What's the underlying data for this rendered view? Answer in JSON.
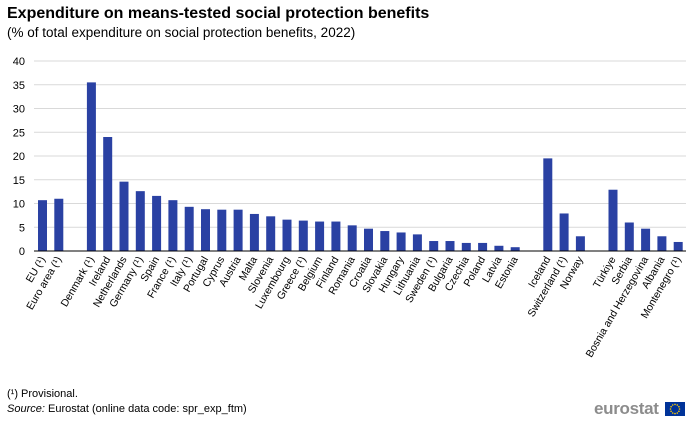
{
  "title": "Expenditure on means-tested social protection benefits",
  "subtitle": "(% of total expenditure on social protection benefits, 2022)",
  "footnote": "(¹) Provisional.",
  "source_label": "Source:",
  "source_text": "Eurostat (online data code: spr_exp_ftm)",
  "logo_text": "eurostat",
  "colors": {
    "bar": "#2a41a3",
    "grid": "#d9d9d9",
    "axis": "#000000"
  },
  "chart_data": {
    "type": "bar",
    "title": "Expenditure on means-tested social protection benefits",
    "xlabel": "",
    "ylabel": "",
    "ylim": [
      0,
      40
    ],
    "yticks": [
      0,
      5,
      10,
      15,
      20,
      25,
      30,
      35,
      40
    ],
    "grid": true,
    "groups": [
      {
        "categories": [
          "EU (¹)",
          "Euro area (¹)"
        ],
        "values": [
          10.7,
          11.0
        ]
      },
      {
        "categories": [
          "Denmark (¹)",
          "Ireland",
          "Netherlands",
          "Germany (¹)",
          "Spain",
          "France (¹)",
          "Italy (¹)",
          "Portugal",
          "Cyprus",
          "Austria",
          "Malta",
          "Slovenia",
          "Luxembourg",
          "Greece (¹)",
          "Belgium",
          "Finland",
          "Romania",
          "Croatia",
          "Slovakia",
          "Hungary",
          "Lithuania",
          "Sweden (¹)",
          "Bulgaria",
          "Czechia",
          "Poland",
          "Latvia",
          "Estonia"
        ],
        "values": [
          35.5,
          24.0,
          14.6,
          12.6,
          11.6,
          10.7,
          9.3,
          8.8,
          8.7,
          8.7,
          7.8,
          7.3,
          6.6,
          6.4,
          6.2,
          6.2,
          5.4,
          4.7,
          4.2,
          3.9,
          3.5,
          2.1,
          2.1,
          1.7,
          1.7,
          1.1,
          0.8
        ]
      },
      {
        "categories": [
          "Iceland",
          "Switzerland (¹)",
          "Norway"
        ],
        "values": [
          19.5,
          7.9,
          3.1
        ]
      },
      {
        "categories": [
          "Türkiye",
          "Serbia",
          "Bosnia and Herzegovina",
          "Albania",
          "Montenegro (¹)"
        ],
        "values": [
          12.9,
          6.0,
          4.7,
          3.1,
          1.9
        ]
      }
    ]
  }
}
